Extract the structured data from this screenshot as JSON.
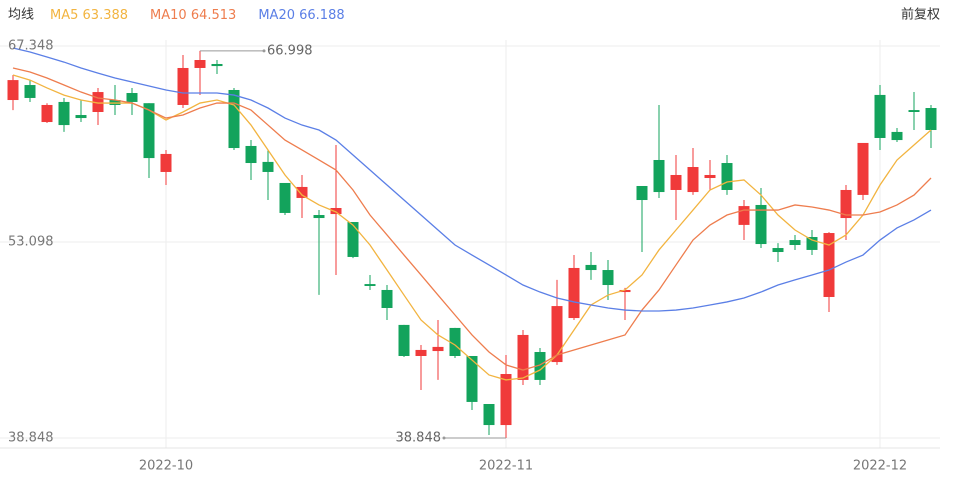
{
  "chart_data": {
    "type": "candlestick",
    "legend_title": "均线",
    "right_label": "前复权",
    "ylim": [
      38.848,
      67.348
    ],
    "yticks": [
      38.848,
      53.098,
      67.348
    ],
    "grid": true,
    "categories": [
      null,
      null,
      null,
      null,
      null,
      null,
      null,
      null,
      null,
      "2022-10",
      null,
      null,
      null,
      null,
      null,
      null,
      null,
      null,
      null,
      null,
      null,
      null,
      null,
      null,
      null,
      null,
      null,
      null,
      null,
      "2022-11",
      null,
      null,
      null,
      null,
      null,
      null,
      null,
      null,
      null,
      null,
      null,
      null,
      null,
      null,
      null,
      null,
      null,
      null,
      null,
      null,
      null,
      "2022-12",
      null,
      null,
      null
    ],
    "candles": {
      "up_color": "#f03a3a",
      "down_color": "#13a35c",
      "open": [
        63.42,
        64.51,
        61.82,
        63.28,
        62.33,
        62.55,
        63.42,
        63.93,
        63.19,
        58.19,
        63.06,
        65.75,
        66.04,
        64.15,
        60.08,
        58.92,
        57.39,
        56.3,
        55.06,
        55.13,
        54.55,
        50.04,
        49.61,
        47.07,
        44.81,
        45.17,
        46.85,
        44.81,
        41.32,
        39.79,
        43.07,
        45.1,
        44.37,
        47.57,
        51.43,
        51.06,
        49.46,
        57.17,
        59.06,
        56.88,
        56.73,
        57.75,
        58.84,
        54.34,
        55.79,
        52.66,
        53.24,
        53.46,
        49.1,
        54.84,
        56.52,
        63.79,
        61.1,
        62.69,
        62.84
      ],
      "close": [
        64.87,
        63.57,
        63.06,
        61.6,
        62.11,
        64.0,
        63.06,
        63.28,
        59.2,
        59.5,
        65.75,
        66.33,
        65.89,
        59.93,
        58.84,
        58.19,
        55.21,
        57.1,
        54.84,
        55.57,
        52.01,
        49.9,
        48.3,
        44.81,
        45.25,
        45.47,
        44.81,
        41.47,
        39.79,
        43.5,
        46.34,
        43.07,
        48.44,
        51.21,
        51.06,
        49.97,
        49.61,
        56.15,
        56.73,
        57.97,
        58.55,
        57.97,
        56.88,
        55.71,
        52.95,
        52.37,
        52.88,
        52.52,
        53.75,
        56.88,
        60.3,
        60.66,
        60.51,
        62.55,
        61.24
      ],
      "high": [
        65.24,
        64.87,
        63.19,
        63.57,
        63.42,
        64.29,
        64.51,
        64.29,
        63.19,
        59.79,
        66.69,
        66.998,
        66.33,
        64.29,
        60.51,
        59.79,
        57.39,
        57.97,
        55.42,
        60.15,
        54.55,
        50.7,
        49.97,
        47.07,
        45.61,
        47.43,
        46.85,
        44.81,
        41.32,
        44.88,
        46.7,
        45.39,
        50.34,
        52.15,
        52.37,
        51.79,
        49.76,
        57.17,
        63.06,
        59.42,
        59.93,
        59.06,
        59.42,
        56.15,
        57.02,
        53.02,
        53.61,
        53.97,
        53.82,
        57.24,
        60.3,
        64.51,
        61.39,
        64.0,
        63.06
      ],
      "low": [
        62.69,
        63.28,
        61.75,
        61.1,
        61.82,
        61.6,
        62.33,
        62.33,
        57.75,
        57.24,
        62.84,
        63.79,
        65.31,
        59.79,
        57.61,
        56.15,
        55.06,
        54.84,
        49.25,
        50.7,
        51.93,
        49.61,
        47.43,
        44.74,
        42.34,
        43.07,
        44.66,
        40.88,
        39.07,
        38.848,
        42.7,
        42.7,
        44.16,
        47.43,
        50.34,
        48.88,
        47.43,
        52.37,
        56.3,
        54.7,
        56.52,
        56.88,
        56.52,
        53.24,
        52.66,
        51.64,
        52.52,
        52.15,
        48.01,
        53.24,
        56.15,
        59.79,
        60.37,
        61.24,
        59.93
      ]
    },
    "series": [
      {
        "name": "MA5",
        "legend_value": 63.388,
        "color": "#f2b440",
        "values": [
          65.24,
          64.87,
          64.3,
          63.78,
          63.42,
          63.2,
          63.2,
          63.2,
          62.69,
          61.97,
          62.55,
          63.2,
          63.42,
          63.06,
          61.6,
          59.79,
          57.97,
          56.51,
          55.79,
          55.28,
          54.33,
          52.88,
          51.06,
          49.24,
          47.43,
          46.34,
          45.61,
          44.52,
          43.43,
          43.07,
          43.21,
          43.79,
          44.88,
          46.7,
          48.52,
          49.24,
          49.61,
          50.7,
          52.52,
          53.97,
          55.42,
          56.88,
          57.46,
          57.61,
          56.51,
          55.06,
          53.97,
          53.24,
          52.88,
          53.61,
          55.06,
          57.24,
          59.06,
          60.15,
          61.24
        ]
      },
      {
        "name": "MA10",
        "legend_value": 64.513,
        "color": "#ee7d4e",
        "values": [
          65.75,
          65.46,
          65.02,
          64.51,
          64.0,
          63.57,
          63.42,
          63.2,
          62.69,
          62.11,
          62.33,
          62.84,
          63.2,
          63.2,
          62.69,
          61.6,
          60.51,
          59.79,
          59.06,
          58.33,
          56.88,
          55.06,
          53.61,
          52.15,
          50.7,
          49.24,
          47.79,
          46.34,
          45.1,
          44.16,
          43.79,
          44.16,
          44.88,
          45.25,
          45.61,
          45.97,
          46.34,
          48.15,
          49.61,
          51.43,
          53.24,
          54.33,
          55.06,
          55.42,
          55.42,
          55.42,
          55.79,
          55.64,
          55.42,
          55.06,
          55.06,
          55.28,
          55.79,
          56.51,
          57.75
        ]
      },
      {
        "name": "MA20",
        "legend_value": 66.188,
        "color": "#5b7fe6",
        "values": [
          67.2,
          66.91,
          66.55,
          66.18,
          65.75,
          65.38,
          65.02,
          64.73,
          64.44,
          64.15,
          63.93,
          63.93,
          63.93,
          63.78,
          63.42,
          62.84,
          62.11,
          61.6,
          61.24,
          60.51,
          59.42,
          58.33,
          57.24,
          56.15,
          55.06,
          53.97,
          52.88,
          52.15,
          51.43,
          50.7,
          49.97,
          49.46,
          49.03,
          48.74,
          48.52,
          48.3,
          48.15,
          48.08,
          48.08,
          48.15,
          48.3,
          48.52,
          48.74,
          49.03,
          49.46,
          49.97,
          50.34,
          50.7,
          51.06,
          51.64,
          52.15,
          53.24,
          54.12,
          54.7,
          55.42
        ]
      }
    ]
  }
}
